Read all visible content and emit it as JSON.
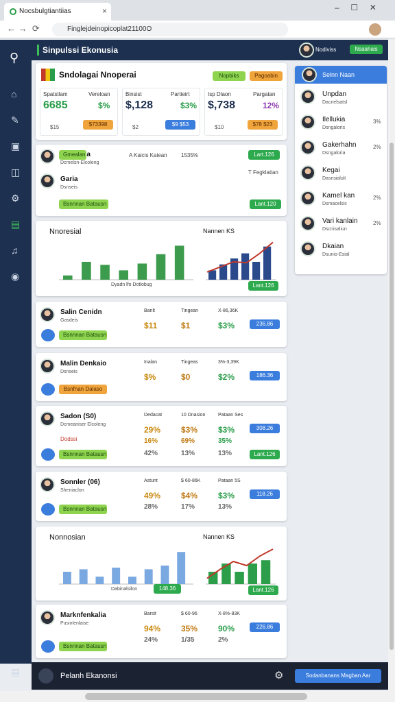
{
  "browser": {
    "tab": "Nocsbulgtiantiias",
    "url": "Finglejdeinopicoplat21100O"
  },
  "header": {
    "title": "Sinpulssi Ekonusia",
    "user": "Nodiviss",
    "button": "Nsaahais"
  },
  "summary": {
    "title": "Sndolagai Nnoperai",
    "buttons": [
      "Nopbiks",
      "Pagoabin"
    ],
    "stats": [
      {
        "label": "Spatstlam",
        "sub": "Vereloan",
        "value": "6685",
        "change": "$%",
        "foot": "$15",
        "badge": "$73398"
      },
      {
        "label": "Binsist",
        "sub": "Partieirt",
        "value": "$,128",
        "change": "$3%",
        "foot": "$2",
        "badge": "$9 $53"
      },
      {
        "label": "Isp Dlaon",
        "sub": "Pargatan",
        "value": "$,738",
        "change": "12%",
        "foot": "$10",
        "badge": "$78 $23"
      }
    ]
  },
  "people": {
    "rows": [
      {
        "name": "Mnulnioa",
        "sub": "Dcmelsn-Elcoleng",
        "info": "A Kaicis Kaiean",
        "pct": "1535%",
        "button": "Gmealan",
        "badge": "Lart.126"
      },
      {
        "name": "Garia",
        "sub": "Dsnseis",
        "info": "T Fegklatian",
        "button": "Bsnnnan Batausn",
        "badge": "Lant.120"
      }
    ]
  },
  "charts": [
    {
      "title": "Nnoresial",
      "ylim": [
        0,
        100
      ],
      "color": "#3c9b4c",
      "values": [
        10,
        42,
        35,
        22,
        38,
        60,
        80
      ],
      "caption": "Dyadn lfo Dotlobug",
      "button": null,
      "title2": "Nannen KS",
      "color2": "#2a4a8c",
      "line_color": "#c0392b",
      "values2": [
        22,
        36,
        50,
        62,
        42,
        78
      ],
      "line": [
        18,
        30,
        42,
        40,
        62,
        88
      ],
      "button2": "Lant.126"
    },
    {
      "title": "Nonnosian",
      "ylim": [
        0,
        100
      ],
      "color": "#7aa8e0",
      "values": [
        30,
        36,
        18,
        40,
        18,
        36,
        45,
        78
      ],
      "caption": "Dabinalsilon",
      "button": "148.36",
      "title2": "Nannen KS",
      "color2": "#2c9e4a",
      "line_color": "#c0392b",
      "values2": [
        30,
        50,
        30,
        50,
        58
      ],
      "line": [
        14,
        36,
        55,
        45,
        68,
        85
      ],
      "button2": "Lant.126"
    }
  ],
  "cards": [
    {
      "name": "Salin Cenidn",
      "sub": "Gasdeis",
      "button": "Bsnnnan Batausn",
      "cols": [
        {
          "head": "Banlt",
          "values": [
            "$11"
          ]
        },
        {
          "head": "Tingean",
          "values": [
            "$1"
          ]
        },
        {
          "head": "X-86,36K",
          "values": [
            "$3%"
          ]
        }
      ],
      "badges": [
        "236.86"
      ]
    },
    {
      "name": "Malin Denkaio",
      "sub": "Dsnseis",
      "button": "Bsnfnan Dalaso",
      "cols": [
        {
          "head": "Inalan",
          "values": [
            "$%"
          ]
        },
        {
          "head": "Tingeas",
          "values": [
            "$0"
          ]
        },
        {
          "head": "3%-3,39K",
          "values": [
            "$2%"
          ]
        }
      ],
      "badges": [
        "186.36"
      ]
    },
    {
      "name": "Sadon (S0)",
      "sub": "Dcmeaniser Elcoleng",
      "extra": "Dodssi",
      "button": "Bsnnnan Batausn",
      "cols": [
        {
          "head": "Dedacat",
          "values": [
            "29%",
            "16%",
            "42%"
          ]
        },
        {
          "head": "10 Dnasion",
          "values": [
            "$3%",
            "69%",
            "13%"
          ]
        },
        {
          "head": "Pataan Ses",
          "values": [
            "$3%",
            "35%",
            "13%"
          ]
        }
      ],
      "badges": [
        "308.26",
        "Lant.126"
      ]
    },
    {
      "name": "Sonnler (06)",
      "sub": "Sheniaclon",
      "button": "Bsnnnan Batausn",
      "cols": [
        {
          "head": "Astunt",
          "values": [
            "49%",
            "28%"
          ]
        },
        {
          "head": "$ 60-86K",
          "values": [
            "$4%",
            "17%"
          ]
        },
        {
          "head": "Pataan 5S",
          "values": [
            "$3%",
            "13%"
          ]
        }
      ],
      "badges": [
        "118.26"
      ]
    },
    {
      "name": "Marknfenkalia",
      "sub": "Pusinlenlaise",
      "button": "Bsnnnan Batausn",
      "cols": [
        {
          "head": "Barsit",
          "values": [
            "94%",
            "24%"
          ]
        },
        {
          "head": "$ 60-96",
          "values": [
            "35%",
            "1/35"
          ]
        },
        {
          "head": "X-8%-83K",
          "values": [
            "90%",
            "2%"
          ]
        }
      ],
      "badges": [
        "226.86"
      ]
    }
  ],
  "panel": {
    "title": "Selnn Naan",
    "items": [
      {
        "name": "Unpdan",
        "sub": "Dacnelsatsl"
      },
      {
        "name": "Ilellukia",
        "sub": "Dsngaloris",
        "pct": "3%"
      },
      {
        "name": "Gakerhahn",
        "sub": "Dsngaloria",
        "pct": "2%"
      },
      {
        "name": "Kegai",
        "sub": "Dasnsialult"
      },
      {
        "name": "Kamel kan",
        "sub": "Dsmacelsis",
        "pct": "2%"
      },
      {
        "name": "Vari kanlain",
        "sub": "Dscnisaliun",
        "pct": "2%"
      },
      {
        "name": "Dkaian",
        "sub": "Dsunio-Esial"
      }
    ]
  },
  "footer": {
    "title": "Pelanh Ekanonsi",
    "button": "Sodanbanans Magban Aar"
  }
}
